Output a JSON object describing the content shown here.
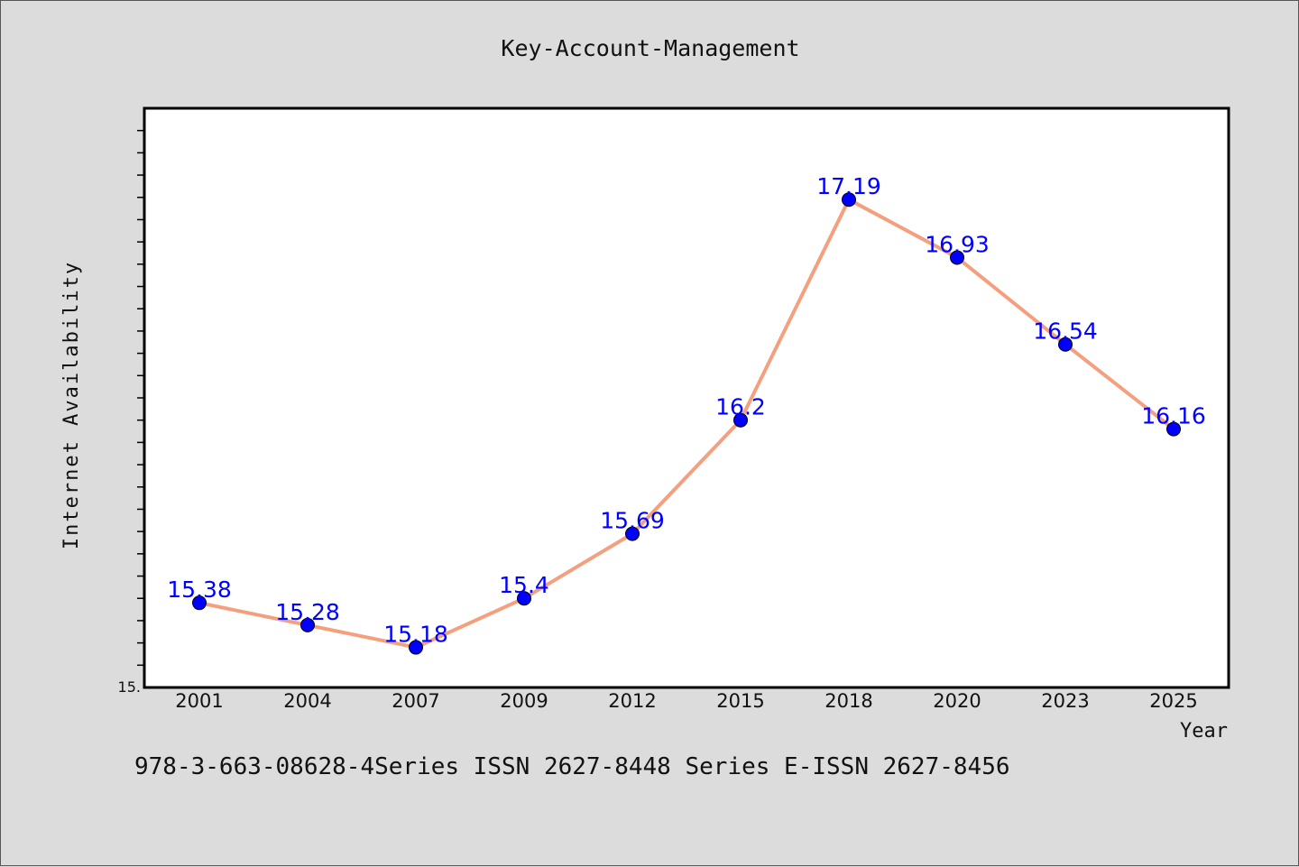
{
  "chart_data": {
    "type": "line",
    "title": "Key-Account-Management",
    "xlabel": "Year",
    "ylabel": "Internet Availability",
    "categories": [
      "2001",
      "2004",
      "2007",
      "2009",
      "2012",
      "2015",
      "2018",
      "2020",
      "2023",
      "2025"
    ],
    "series": [
      {
        "values": [
          15.38,
          15.28,
          15.18,
          15.4,
          15.69,
          16.2,
          17.19,
          16.93,
          16.54,
          16.16
        ],
        "labels": [
          "15.38",
          "15.28",
          "15.18",
          "15.4",
          "15.69",
          "16.2",
          "17.19",
          "16.93",
          "16.54",
          "16.16"
        ]
      }
    ],
    "ylim": [
      15.0,
      17.6
    ],
    "y_tick_label": "15.",
    "grid": false,
    "line_color": "#f4a07e",
    "marker_color": "#0000ff",
    "label_color": "#0000ff"
  },
  "footer": {
    "text": "978-3-663-08628-4Series ISSN 2627-8448 Series E-ISSN 2627-8456"
  }
}
